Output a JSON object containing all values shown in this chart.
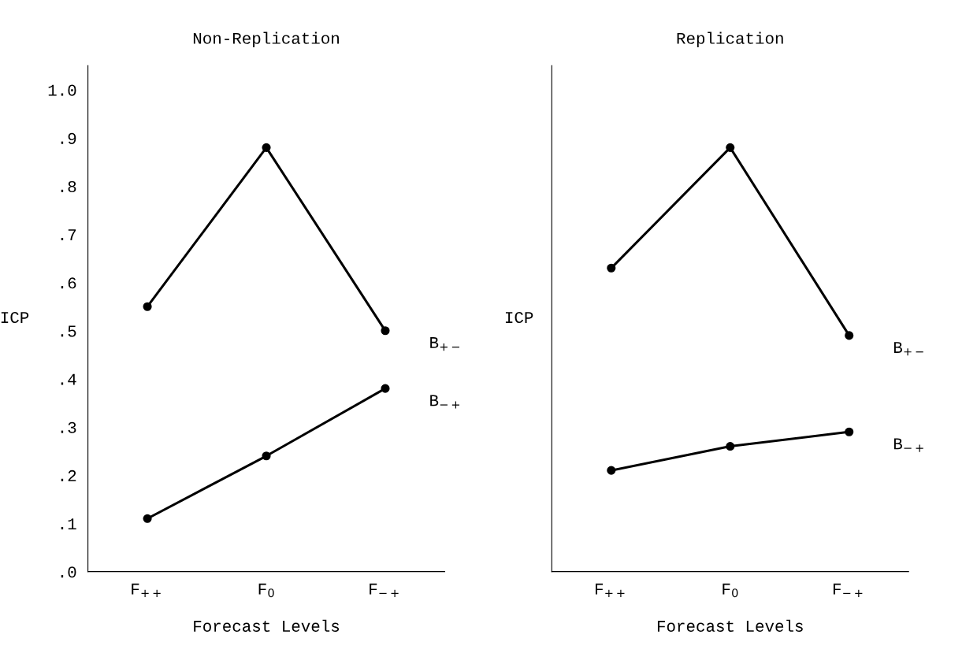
{
  "chart_data": [
    {
      "type": "line",
      "title": "Non-Replication",
      "xlabel": "Forecast Levels",
      "ylabel": "ICP",
      "categories": [
        "F$_{++}$",
        "F$_{0}$",
        "F$_{−+}$"
      ],
      "ylim": [
        0,
        1.05
      ],
      "yticks": [
        {
          "value": 0,
          "label": ".0"
        },
        {
          "value": 0.1,
          "label": ".1"
        },
        {
          "value": 0.2,
          "label": ".2"
        },
        {
          "value": 0.3,
          "label": ".3"
        },
        {
          "value": 0.4,
          "label": ".4"
        },
        {
          "value": 0.5,
          "label": ".5"
        },
        {
          "value": 0.6,
          "label": ".6"
        },
        {
          "value": 0.7,
          "label": ".7"
        },
        {
          "value": 0.8,
          "label": ".8"
        },
        {
          "value": 0.9,
          "label": ".9"
        },
        {
          "value": 1.0,
          "label": "1.0"
        }
      ],
      "marker": "circle",
      "line_style": "solid",
      "grid": false,
      "legend": false,
      "series": [
        {
          "name": "B$_{+−}$",
          "color": "#000000",
          "values": [
            0.55,
            0.88,
            0.5
          ]
        },
        {
          "name": "B$_{−+}$",
          "color": "#000000",
          "values": [
            0.11,
            0.24,
            0.38
          ]
        }
      ]
    },
    {
      "type": "line",
      "title": "Replication",
      "xlabel": "Forecast Levels",
      "ylabel": "ICP",
      "categories": [
        "F$_{++}$",
        "F$_{0}$",
        "F$_{−+}$"
      ],
      "ylim": [
        0,
        1.05
      ],
      "tick_labels": "x",
      "marker": "circle",
      "line_style": "solid",
      "grid": false,
      "legend": false,
      "series": [
        {
          "name": "B$_{+−}$",
          "color": "#000000",
          "values": [
            0.63,
            0.88,
            0.49
          ]
        },
        {
          "name": "B$_{−+}$",
          "color": "#000000",
          "values": [
            0.21,
            0.26,
            0.29
          ]
        }
      ]
    }
  ]
}
